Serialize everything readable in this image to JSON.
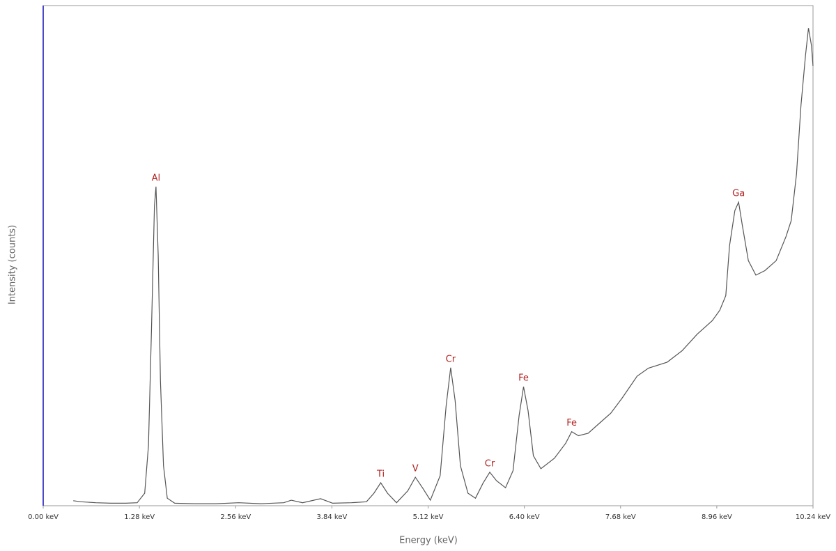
{
  "chart_data": {
    "type": "line",
    "xlabel": "Energy (keV)",
    "ylabel": "Intensity (counts)",
    "xlim": [
      0,
      10.24
    ],
    "xticks": [
      {
        "value": 0,
        "label": "0.00 keV"
      },
      {
        "value": 1.28,
        "label": "1.28 keV"
      },
      {
        "value": 2.56,
        "label": "2.56 keV"
      },
      {
        "value": 3.84,
        "label": "3.84 keV"
      },
      {
        "value": 5.12,
        "label": "5.12 keV"
      },
      {
        "value": 6.4,
        "label": "6.40 keV"
      },
      {
        "value": 7.68,
        "label": "7.68 keV"
      },
      {
        "value": 8.96,
        "label": "8.96 keV"
      },
      {
        "value": 10.24,
        "label": "10.24 keV"
      }
    ],
    "ylim": [
      0,
      100
    ],
    "series": [
      {
        "color": "#555555",
        "x": [
          0.4,
          0.5,
          0.7,
          0.9,
          1.1,
          1.25,
          1.35,
          1.4,
          1.44,
          1.48,
          1.5,
          1.53,
          1.56,
          1.6,
          1.65,
          1.75,
          2.0,
          2.3,
          2.6,
          2.9,
          3.2,
          3.3,
          3.45,
          3.69,
          3.85,
          4.1,
          4.3,
          4.4,
          4.49,
          4.58,
          4.7,
          4.85,
          4.95,
          5.05,
          5.15,
          5.28,
          5.36,
          5.42,
          5.48,
          5.55,
          5.65,
          5.75,
          5.85,
          5.94,
          6.03,
          6.15,
          6.25,
          6.33,
          6.39,
          6.45,
          6.52,
          6.62,
          6.8,
          6.95,
          7.03,
          7.12,
          7.25,
          7.4,
          7.55,
          7.7,
          7.9,
          8.05,
          8.3,
          8.5,
          8.7,
          8.9,
          9.0,
          9.08,
          9.13,
          9.2,
          9.25,
          9.3,
          9.38,
          9.48,
          9.6,
          9.75,
          9.88,
          9.95,
          10.02,
          10.08,
          10.14,
          10.18,
          10.22,
          10.24
        ],
        "values": [
          1.0,
          0.8,
          0.6,
          0.5,
          0.5,
          0.6,
          2.5,
          12,
          35,
          60,
          63.8,
          50,
          25,
          8,
          1.5,
          0.5,
          0.4,
          0.4,
          0.6,
          0.4,
          0.6,
          1.1,
          0.6,
          1.4,
          0.5,
          0.6,
          0.8,
          2.5,
          4.6,
          2.5,
          0.6,
          3.0,
          5.7,
          3.5,
          1.1,
          6,
          20,
          27.6,
          21,
          8,
          2.5,
          1.5,
          4.5,
          6.7,
          5.0,
          3.6,
          7,
          18,
          23.8,
          19,
          10,
          7.4,
          9.5,
          12.5,
          14.8,
          14,
          14.5,
          16.5,
          18.5,
          21.5,
          25.9,
          27.5,
          28.7,
          31,
          34.3,
          37,
          39.1,
          42,
          52,
          59,
          60.7,
          56,
          49,
          46.1,
          47,
          49,
          53.8,
          57,
          66.3,
          80,
          90,
          95.5,
          92,
          87.9
        ]
      }
    ],
    "annotations": [
      {
        "text": "Al",
        "x": 1.5,
        "y": 63.8
      },
      {
        "text": "Ti",
        "x": 4.49,
        "y": 4.6
      },
      {
        "text": "V",
        "x": 4.95,
        "y": 5.7
      },
      {
        "text": "Cr",
        "x": 5.42,
        "y": 27.6
      },
      {
        "text": "Cr",
        "x": 5.94,
        "y": 6.7
      },
      {
        "text": "Fe",
        "x": 6.39,
        "y": 23.8
      },
      {
        "text": "Fe",
        "x": 7.03,
        "y": 14.8
      },
      {
        "text": "Ga",
        "x": 9.25,
        "y": 60.7
      }
    ]
  }
}
